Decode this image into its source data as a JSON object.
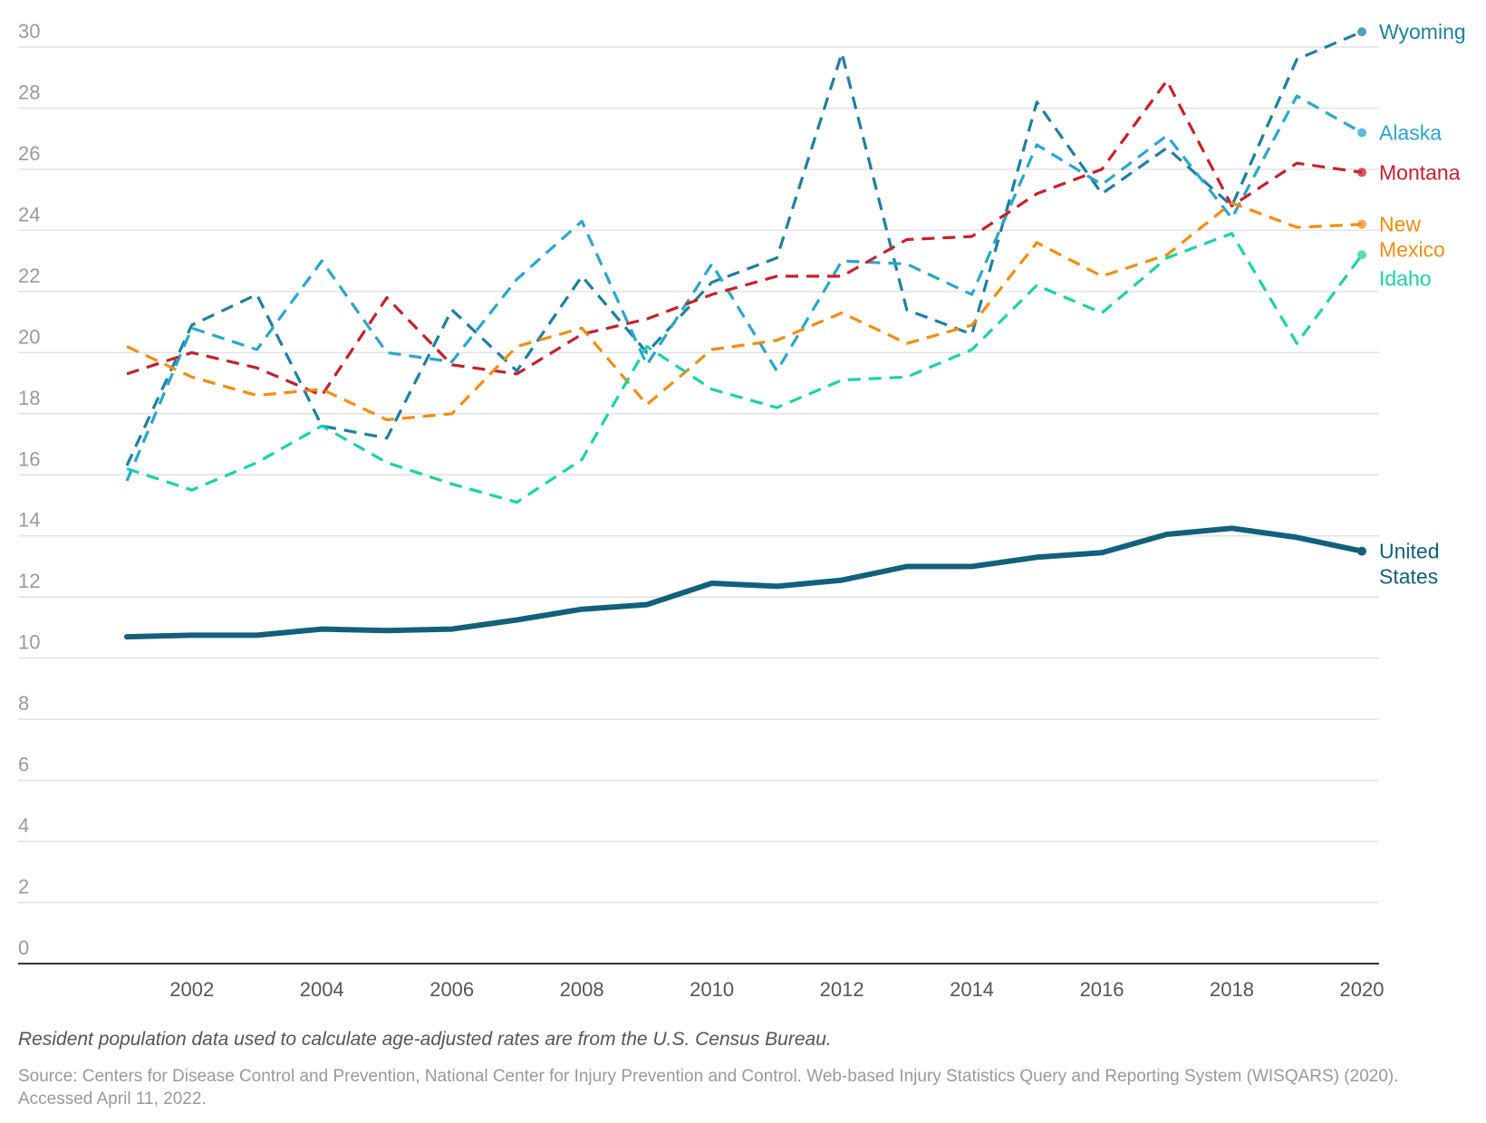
{
  "chart_data": {
    "type": "line",
    "ylim": [
      0,
      30
    ],
    "y_ticks": [
      0,
      2,
      4,
      6,
      8,
      10,
      12,
      14,
      16,
      18,
      20,
      22,
      24,
      26,
      28,
      30
    ],
    "x_ticks": [
      2002,
      2004,
      2006,
      2008,
      2010,
      2012,
      2014,
      2016,
      2018,
      2020
    ],
    "x": [
      2001,
      2002,
      2003,
      2004,
      2005,
      2006,
      2007,
      2008,
      2009,
      2010,
      2011,
      2012,
      2013,
      2014,
      2015,
      2016,
      2017,
      2018,
      2019,
      2020
    ],
    "series": [
      {
        "name": "Wyoming",
        "label_lines": [
          "Wyoming"
        ],
        "color": "#1d7fa3",
        "dashed": true,
        "values": [
          16.3,
          20.9,
          21.9,
          17.6,
          17.2,
          21.4,
          19.4,
          22.5,
          20.0,
          22.3,
          23.1,
          29.8,
          21.4,
          20.6,
          28.2,
          25.2,
          26.7,
          24.8,
          29.6,
          30.5
        ]
      },
      {
        "name": "Alaska",
        "label_lines": [
          "Alaska"
        ],
        "color": "#2aa6cd",
        "dashed": true,
        "values": [
          15.8,
          20.8,
          20.1,
          23.0,
          20.0,
          19.7,
          22.4,
          24.3,
          19.6,
          22.9,
          19.4,
          23.0,
          22.9,
          21.9,
          26.8,
          25.5,
          27.1,
          24.4,
          28.4,
          27.2
        ]
      },
      {
        "name": "Montana",
        "label_lines": [
          "Montana"
        ],
        "color": "#c8202a",
        "dashed": true,
        "values": [
          19.3,
          20.0,
          19.5,
          18.6,
          21.8,
          19.6,
          19.3,
          20.6,
          21.1,
          21.9,
          22.5,
          22.5,
          23.7,
          23.8,
          25.2,
          26.0,
          28.9,
          24.8,
          26.2,
          25.9
        ]
      },
      {
        "name": "New Mexico",
        "label_lines": [
          "New",
          "Mexico"
        ],
        "color": "#f28d0f",
        "dashed": true,
        "values": [
          20.2,
          19.2,
          18.6,
          18.8,
          17.8,
          18.0,
          20.2,
          20.8,
          18.3,
          20.1,
          20.4,
          21.3,
          20.3,
          20.9,
          23.6,
          22.5,
          23.2,
          24.9,
          24.1,
          24.2
        ]
      },
      {
        "name": "Idaho",
        "label_lines": [
          "Idaho"
        ],
        "color": "#19d3a7",
        "dashed": true,
        "values": [
          16.2,
          15.5,
          16.4,
          17.6,
          16.4,
          15.7,
          15.1,
          16.5,
          20.2,
          18.8,
          18.2,
          19.1,
          19.2,
          20.1,
          22.2,
          21.3,
          23.1,
          23.9,
          20.3,
          23.2
        ]
      },
      {
        "name": "United States",
        "label_lines": [
          "United",
          "States"
        ],
        "color": "#12607c",
        "dashed": false,
        "values": [
          10.7,
          10.75,
          10.75,
          10.95,
          10.9,
          10.95,
          11.25,
          11.6,
          11.75,
          12.45,
          12.35,
          12.55,
          13.0,
          13.0,
          13.3,
          13.45,
          14.05,
          14.25,
          13.95,
          13.5
        ]
      }
    ]
  },
  "footnote": "Resident population data used to calculate age-adjusted rates are from the U.S. Census Bureau.",
  "source": "Source: Centers for Disease Control and Prevention, National Center for Injury Prevention and Control. Web-based Injury Statistics Query and Reporting System (WISQARS) (2020). Accessed April 11, 2022."
}
